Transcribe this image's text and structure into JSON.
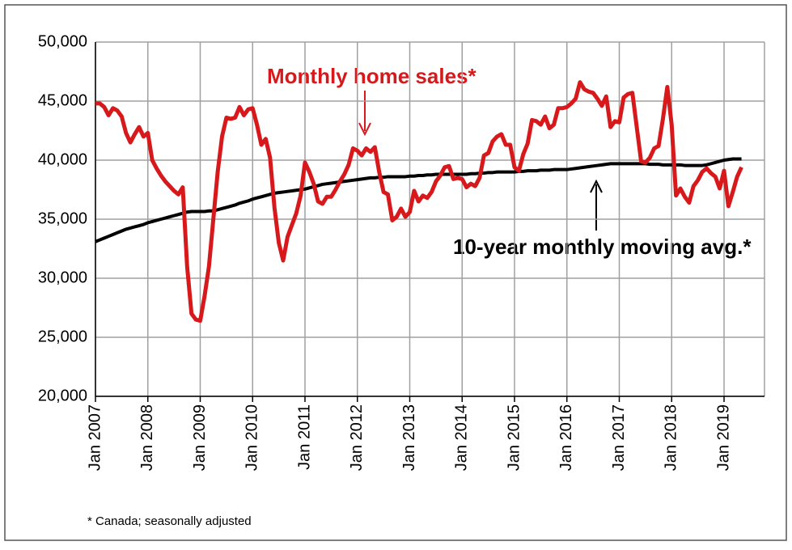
{
  "chart_data": {
    "type": "line",
    "annotations": [
      "Monthly home sales*",
      "10-year monthly moving avg.*"
    ],
    "footnote": "* Canada; seasonally adjusted",
    "categories": [
      "Jan 2007",
      null,
      null,
      null,
      null,
      null,
      null,
      null,
      null,
      null,
      null,
      null,
      "Jan 2008",
      null,
      null,
      null,
      null,
      null,
      null,
      null,
      null,
      null,
      null,
      null,
      "Jan 2009",
      null,
      null,
      null,
      null,
      null,
      null,
      null,
      null,
      null,
      null,
      null,
      "Jan 2010",
      null,
      null,
      null,
      null,
      null,
      null,
      null,
      null,
      null,
      null,
      null,
      "Jan 2011",
      null,
      null,
      null,
      null,
      null,
      null,
      null,
      null,
      null,
      null,
      null,
      "Jan 2012",
      null,
      null,
      null,
      null,
      null,
      null,
      null,
      null,
      null,
      null,
      null,
      "Jan 2013",
      null,
      null,
      null,
      null,
      null,
      null,
      null,
      null,
      null,
      null,
      null,
      "Jan 2014",
      null,
      null,
      null,
      null,
      null,
      null,
      null,
      null,
      null,
      null,
      null,
      "Jan 2015",
      null,
      null,
      null,
      null,
      null,
      null,
      null,
      null,
      null,
      null,
      null,
      "Jan 2016",
      null,
      null,
      null,
      null,
      null,
      null,
      null,
      null,
      null,
      null,
      null,
      "Jan 2017",
      null,
      null,
      null,
      null,
      null,
      null,
      null,
      null,
      null,
      null,
      null,
      "Jan 2018",
      null,
      null,
      null,
      null,
      null,
      null,
      null,
      null,
      null,
      null,
      null,
      "Jan 2019",
      null,
      null,
      null,
      null
    ],
    "series": [
      {
        "name": "Monthly home sales*",
        "color": "#d7191c",
        "values": [
          44800,
          44800,
          44500,
          43800,
          44400,
          44200,
          43700,
          42300,
          41500,
          42200,
          42800,
          42000,
          42300,
          40000,
          39300,
          38700,
          38200,
          37800,
          37400,
          37100,
          37700,
          31000,
          27000,
          26500,
          26400,
          28500,
          31000,
          35000,
          39000,
          42000,
          43600,
          43500,
          43600,
          44500,
          43800,
          44300,
          44400,
          43000,
          41300,
          41800,
          40200,
          36000,
          33000,
          31500,
          33500,
          34500,
          35500,
          37000,
          39800,
          39000,
          38000,
          36500,
          36300,
          36900,
          36900,
          37500,
          38200,
          38800,
          39600,
          41000,
          40800,
          40400,
          41000,
          40700,
          41100,
          39000,
          37300,
          37100,
          34900,
          35200,
          35900,
          35200,
          35600,
          37400,
          36500,
          37000,
          36800,
          37300,
          38200,
          38700,
          39400,
          39500,
          38400,
          38500,
          38400,
          37700,
          38000,
          37800,
          38500,
          40400,
          40600,
          41600,
          42000,
          42200,
          41300,
          41300,
          39400,
          39100,
          40500,
          41400,
          43400,
          43300,
          43000,
          43700,
          42700,
          43000,
          44400,
          44400,
          44500,
          44800,
          45200,
          46600,
          46000,
          45800,
          45700,
          45200,
          44600,
          45400,
          42800,
          43300,
          43200,
          45300,
          45600,
          45700,
          42800,
          39900,
          39800,
          40200,
          41000,
          41200,
          43500,
          46200,
          43000,
          37000,
          37600,
          36900,
          36400,
          37800,
          38300,
          39000,
          39300,
          38900,
          38600,
          37600,
          39100,
          36100,
          37300,
          38600,
          39400
        ]
      },
      {
        "name": "10-year monthly moving avg.*",
        "color": "#000000",
        "values": [
          33100,
          33250,
          33400,
          33550,
          33700,
          33850,
          34000,
          34150,
          34250,
          34350,
          34450,
          34550,
          34700,
          34800,
          34900,
          35000,
          35100,
          35200,
          35300,
          35400,
          35500,
          35600,
          35650,
          35650,
          35650,
          35650,
          35700,
          35700,
          35800,
          35900,
          36000,
          36100,
          36200,
          36350,
          36450,
          36550,
          36700,
          36800,
          36900,
          37000,
          37100,
          37200,
          37250,
          37300,
          37350,
          37400,
          37450,
          37500,
          37550,
          37650,
          37750,
          37850,
          37950,
          38000,
          38050,
          38100,
          38150,
          38200,
          38250,
          38300,
          38350,
          38400,
          38450,
          38500,
          38500,
          38550,
          38550,
          38600,
          38600,
          38600,
          38600,
          38600,
          38650,
          38650,
          38700,
          38700,
          38750,
          38750,
          38800,
          38800,
          38800,
          38800,
          38800,
          38800,
          38800,
          38800,
          38850,
          38850,
          38900,
          38900,
          38950,
          38950,
          39000,
          39000,
          39000,
          39000,
          39000,
          39050,
          39050,
          39100,
          39100,
          39100,
          39150,
          39150,
          39150,
          39200,
          39200,
          39200,
          39200,
          39250,
          39300,
          39350,
          39400,
          39450,
          39500,
          39550,
          39600,
          39650,
          39700,
          39700,
          39700,
          39700,
          39700,
          39700,
          39700,
          39700,
          39700,
          39650,
          39650,
          39650,
          39600,
          39600,
          39600,
          39600,
          39600,
          39550,
          39550,
          39550,
          39550,
          39550,
          39600,
          39700,
          39800,
          39900,
          40000,
          40050,
          40100,
          40100,
          40100
        ]
      }
    ],
    "ylim": [
      20000,
      50000
    ],
    "yticks": [
      {
        "value": 20000,
        "label": "20,000"
      },
      {
        "value": 25000,
        "label": "25,000"
      },
      {
        "value": 30000,
        "label": "30,000"
      },
      {
        "value": 35000,
        "label": "35,000"
      },
      {
        "value": 40000,
        "label": "40,000"
      },
      {
        "value": 45000,
        "label": "45,000"
      },
      {
        "value": 50000,
        "label": "50,000"
      }
    ],
    "grid": true
  }
}
